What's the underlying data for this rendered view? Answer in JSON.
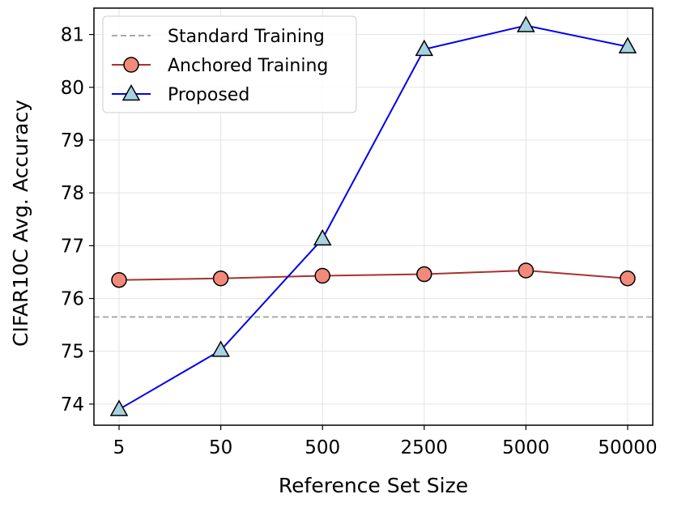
{
  "chart_data": {
    "type": "line",
    "xlabel": "Reference Set Size",
    "ylabel": "CIFAR10C Avg. Accuracy",
    "categories": [
      "5",
      "50",
      "500",
      "2500",
      "5000",
      "50000"
    ],
    "ylim": [
      73.6,
      81.5
    ],
    "yticks": [
      74,
      75,
      76,
      77,
      78,
      79,
      80,
      81
    ],
    "grid": true,
    "legend_position": "top-left",
    "reference_line": {
      "name": "Standard Training",
      "value": 75.65,
      "color": "#aaaaaa",
      "style": "dashed"
    },
    "series": [
      {
        "name": "Anchored Training",
        "values": [
          76.35,
          76.38,
          76.43,
          76.46,
          76.53,
          76.38
        ],
        "color": "#a8322e",
        "marker_fill": "#f28a7a",
        "marker": "circle"
      },
      {
        "name": "Proposed",
        "values": [
          73.9,
          75.02,
          77.13,
          80.72,
          81.17,
          80.77
        ],
        "color": "#0000ee",
        "marker_fill": "#a7d2e1",
        "marker": "triangle"
      }
    ]
  }
}
